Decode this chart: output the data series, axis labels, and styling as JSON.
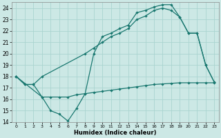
{
  "xlabel": "Humidex (Indice chaleur)",
  "bg_color": "#cce8e5",
  "grid_color": "#aad4d0",
  "line_color": "#1a7870",
  "xlim": [
    -0.5,
    23.5
  ],
  "ylim": [
    14,
    24.5
  ],
  "yticks": [
    14,
    15,
    16,
    17,
    18,
    19,
    20,
    21,
    22,
    23,
    24
  ],
  "xticks": [
    0,
    1,
    2,
    3,
    4,
    5,
    6,
    7,
    8,
    9,
    10,
    11,
    12,
    13,
    14,
    15,
    16,
    17,
    18,
    19,
    20,
    21,
    22,
    23
  ],
  "line1_x": [
    0,
    1,
    2,
    3,
    4,
    5,
    6,
    7,
    8,
    9,
    10,
    11,
    12,
    13,
    14,
    15,
    16,
    17,
    18,
    19,
    20,
    21,
    22,
    23
  ],
  "line1_y": [
    18.0,
    17.3,
    17.3,
    16.2,
    15.0,
    14.7,
    14.1,
    15.2,
    16.5,
    20.0,
    21.5,
    21.8,
    22.2,
    22.5,
    23.6,
    23.8,
    24.1,
    24.3,
    24.3,
    23.2,
    21.8,
    21.8,
    19.0,
    17.5
  ],
  "line2_x": [
    0,
    1,
    2,
    3,
    8,
    9,
    10,
    11,
    12,
    13,
    14,
    15,
    16,
    17,
    18,
    19,
    20,
    21,
    22,
    23
  ],
  "line2_y": [
    18.0,
    17.3,
    17.3,
    18.0,
    20.0,
    20.5,
    21.0,
    21.5,
    21.8,
    22.2,
    23.0,
    23.3,
    23.8,
    24.0,
    23.8,
    23.2,
    21.8,
    21.8,
    19.0,
    17.5
  ],
  "line3_x": [
    0,
    3,
    4,
    5,
    6,
    7,
    8,
    9,
    10,
    11,
    12,
    13,
    14,
    15,
    16,
    17,
    18,
    19,
    20,
    21,
    22,
    23
  ],
  "line3_y": [
    18.0,
    16.2,
    16.2,
    16.2,
    16.2,
    16.4,
    16.5,
    16.6,
    16.7,
    16.8,
    16.9,
    17.0,
    17.1,
    17.2,
    17.3,
    17.35,
    17.4,
    17.45,
    17.45,
    17.45,
    17.45,
    17.45
  ]
}
